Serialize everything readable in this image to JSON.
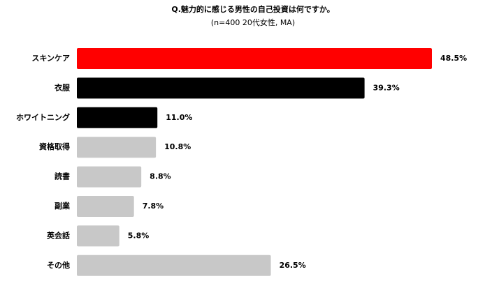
{
  "chart_data": {
    "type": "bar",
    "orientation": "horizontal",
    "title": "Q.魅力的に感じる男性の自己投資は何ですか。",
    "subtitle": "(n=400 20代女性, MA)",
    "categories": [
      "スキンケア",
      "衣服",
      "ホワイトニング",
      "資格取得",
      "読書",
      "副業",
      "英会話",
      "その他"
    ],
    "values": [
      48.5,
      39.3,
      11.0,
      10.8,
      8.8,
      7.8,
      5.8,
      26.5
    ],
    "value_labels": [
      "48.5%",
      "39.3%",
      "11.0%",
      "10.8%",
      "8.8%",
      "7.8%",
      "5.8%",
      "26.5%"
    ],
    "colors": [
      "#ff0000",
      "#000000",
      "#000000",
      "#c8c8c8",
      "#c8c8c8",
      "#c8c8c8",
      "#c8c8c8",
      "#c8c8c8"
    ]
  }
}
